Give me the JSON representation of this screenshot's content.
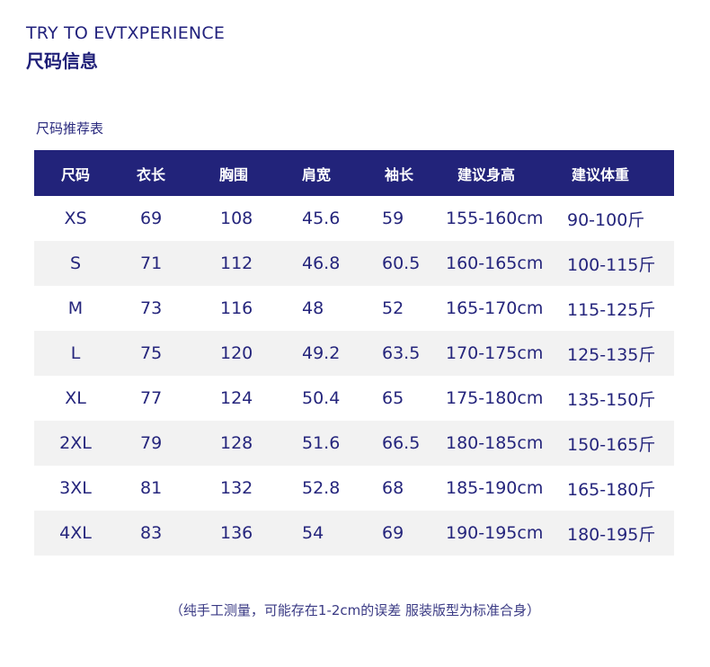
{
  "header": {
    "brand_en": "TRY TO EVTXPERIENCE",
    "brand_cn": "尺码信息"
  },
  "table": {
    "caption": "尺码推荐表",
    "columns": [
      "尺码",
      "衣长",
      "胸围",
      "肩宽",
      "袖长",
      "建议身高",
      "建议体重"
    ],
    "rows": [
      [
        "XS",
        "69",
        "108",
        "45.6",
        "59",
        "155-160cm",
        "90-100斤"
      ],
      [
        "S",
        "71",
        "112",
        "46.8",
        "60.5",
        "160-165cm",
        "100-115斤"
      ],
      [
        "M",
        "73",
        "116",
        "48",
        "52",
        "165-170cm",
        "115-125斤"
      ],
      [
        "L",
        "75",
        "120",
        "49.2",
        "63.5",
        "170-175cm",
        "125-135斤"
      ],
      [
        "XL",
        "77",
        "124",
        "50.4",
        "65",
        "175-180cm",
        "135-150斤"
      ],
      [
        "2XL",
        "79",
        "128",
        "51.6",
        "66.5",
        "180-185cm",
        "150-165斤"
      ],
      [
        "3XL",
        "81",
        "132",
        "52.8",
        "68",
        "185-190cm",
        "165-180斤"
      ],
      [
        "4XL",
        "83",
        "136",
        "54",
        "69",
        "190-195cm",
        "180-195斤"
      ]
    ]
  },
  "footnote": "（纯手工测量，可能存在1-2cm的误差 服装版型为标准合身）",
  "colors": {
    "header_bg": "#22237a",
    "text": "#23237a",
    "row_shade": "#f2f2f2"
  }
}
